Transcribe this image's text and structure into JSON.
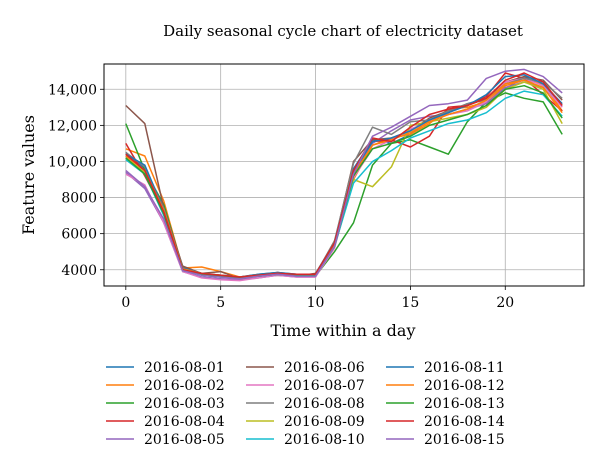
{
  "chart_data": {
    "type": "line",
    "title": "Daily seasonal cycle chart of electricity dataset",
    "xlabel": "Time within a day",
    "ylabel": "Feature values",
    "xlim": [
      -1.15,
      24.15
    ],
    "ylim": [
      3100,
      15400
    ],
    "xticks": [
      0,
      5,
      10,
      15,
      20
    ],
    "yticks": [
      4000,
      6000,
      8000,
      10000,
      12000,
      14000
    ],
    "ytick_labels": [
      "4000",
      "6000",
      "8000",
      "10,000",
      "12,000",
      "14,000"
    ],
    "grid": true,
    "legend_location": "below plot, 3 columns",
    "x": [
      0,
      1,
      2,
      3,
      4,
      5,
      6,
      7,
      8,
      9,
      10,
      11,
      12,
      13,
      14,
      15,
      16,
      17,
      18,
      19,
      20,
      21,
      22,
      23
    ],
    "series": [
      {
        "name": "2016-08-01",
        "color": "#1f77b4",
        "values": [
          10500,
          9600,
          7200,
          4100,
          3800,
          3700,
          3600,
          3700,
          3800,
          3700,
          3700,
          5300,
          9600,
          11200,
          11000,
          11500,
          12300,
          12700,
          13200,
          13500,
          14000,
          14700,
          14200,
          13100
        ]
      },
      {
        "name": "2016-08-02",
        "color": "#ff7f0e",
        "values": [
          10700,
          10300,
          7800,
          4100,
          4150,
          3900,
          3600,
          3700,
          3800,
          3700,
          3700,
          5600,
          9000,
          10900,
          11300,
          11500,
          12100,
          12900,
          13000,
          13300,
          14200,
          14500,
          14300,
          12800
        ]
      },
      {
        "name": "2016-08-03",
        "color": "#2ca02c",
        "values": [
          12100,
          9500,
          7600,
          4100,
          3700,
          3600,
          3550,
          3700,
          3800,
          3700,
          3650,
          5000,
          6600,
          9800,
          11000,
          11200,
          10800,
          10400,
          12200,
          13300,
          13800,
          13500,
          13300,
          11500
        ]
      },
      {
        "name": "2016-08-04",
        "color": "#d62728",
        "values": [
          11000,
          9200,
          7200,
          4100,
          3750,
          3650,
          3600,
          3700,
          3850,
          3700,
          3700,
          5400,
          9500,
          11100,
          11200,
          10800,
          11400,
          13000,
          13100,
          13600,
          14900,
          14600,
          13700,
          12800
        ]
      },
      {
        "name": "2016-08-05",
        "color": "#9467bd",
        "values": [
          9400,
          8500,
          6600,
          3900,
          3600,
          3500,
          3450,
          3550,
          3700,
          3600,
          3600,
          5300,
          9200,
          11000,
          11700,
          12300,
          12500,
          12600,
          12900,
          13200,
          14100,
          14400,
          14100,
          13100
        ]
      },
      {
        "name": "2016-08-06",
        "color": "#8c564b",
        "values": [
          13100,
          12100,
          7400,
          4200,
          3800,
          3900,
          3500,
          3650,
          3700,
          3650,
          3800,
          5500,
          10000,
          11200,
          11300,
          11700,
          12400,
          12800,
          13100,
          13500,
          14400,
          14700,
          14500,
          13400
        ]
      },
      {
        "name": "2016-08-07",
        "color": "#e377c2",
        "values": [
          9300,
          8700,
          6600,
          3900,
          3550,
          3450,
          3400,
          3550,
          3700,
          3600,
          3600,
          5200,
          9100,
          10700,
          11200,
          11800,
          12200,
          12600,
          12800,
          13300,
          14400,
          14600,
          14200,
          13000
        ]
      },
      {
        "name": "2016-08-08",
        "color": "#7f7f7f",
        "values": [
          10500,
          9700,
          7400,
          4050,
          3800,
          3700,
          3600,
          3750,
          3850,
          3750,
          3750,
          5600,
          9900,
          11900,
          11500,
          12200,
          12300,
          12800,
          13200,
          13400,
          14300,
          14600,
          14400,
          13500
        ]
      },
      {
        "name": "2016-08-09",
        "color": "#bcbd22",
        "values": [
          10200,
          9400,
          7200,
          4000,
          3750,
          3650,
          3550,
          3700,
          3800,
          3700,
          3700,
          5400,
          9000,
          8600,
          9700,
          12000,
          12200,
          12400,
          12600,
          13000,
          14000,
          14400,
          14000,
          12100
        ]
      },
      {
        "name": "2016-08-10",
        "color": "#17becf",
        "values": [
          10100,
          9300,
          7000,
          3950,
          3700,
          3600,
          3550,
          3650,
          3750,
          3650,
          3650,
          5300,
          8800,
          10000,
          10600,
          11300,
          11700,
          12100,
          12300,
          12700,
          13500,
          13900,
          13700,
          12500
        ]
      },
      {
        "name": "2016-08-11",
        "color": "#1f77b4",
        "values": [
          10400,
          9800,
          7300,
          4100,
          3800,
          3700,
          3600,
          3750,
          3850,
          3750,
          3750,
          5500,
          9400,
          11100,
          11300,
          11700,
          12300,
          12700,
          13100,
          13700,
          14700,
          14800,
          14300,
          13200
        ]
      },
      {
        "name": "2016-08-12",
        "color": "#ff7f0e",
        "values": [
          10300,
          9500,
          7300,
          4050,
          3800,
          3700,
          3600,
          3700,
          3800,
          3700,
          3700,
          5400,
          9300,
          10900,
          11200,
          11600,
          12200,
          12600,
          12900,
          13400,
          14300,
          14500,
          14100,
          12700
        ]
      },
      {
        "name": "2016-08-13",
        "color": "#2ca02c",
        "values": [
          10200,
          9300,
          7100,
          4000,
          3750,
          3650,
          3550,
          3650,
          3750,
          3700,
          3700,
          5300,
          9200,
          10700,
          11000,
          11400,
          12000,
          12300,
          12600,
          13100,
          14000,
          14200,
          13800,
          12400
        ]
      },
      {
        "name": "2016-08-14",
        "color": "#d62728",
        "values": [
          10400,
          9500,
          7200,
          4000,
          3800,
          3700,
          3600,
          3700,
          3800,
          3750,
          3750,
          5500,
          9500,
          11300,
          11100,
          11900,
          12600,
          12900,
          13100,
          13500,
          14500,
          14900,
          14400,
          13100
        ]
      },
      {
        "name": "2016-08-15",
        "color": "#9467bd",
        "values": [
          9500,
          8600,
          6800,
          3950,
          3700,
          3600,
          3500,
          3650,
          3750,
          3650,
          3650,
          5300,
          9300,
          11400,
          11900,
          12500,
          13100,
          13200,
          13400,
          14600,
          15000,
          15100,
          14700,
          13800
        ]
      }
    ]
  }
}
